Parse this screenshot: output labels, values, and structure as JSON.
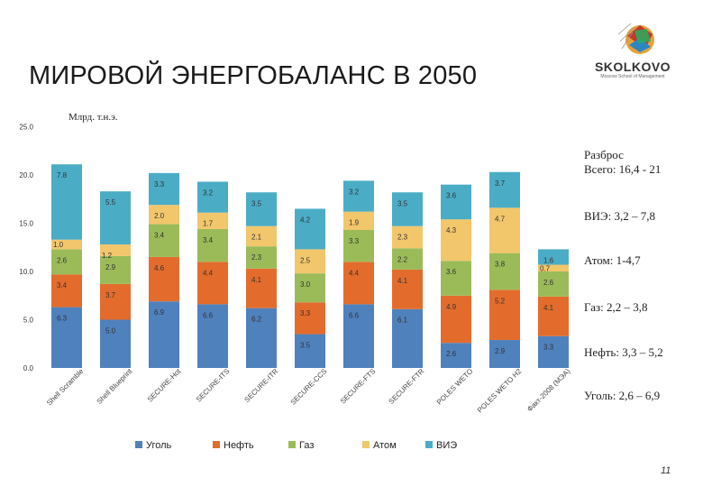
{
  "slide_title": "МИРОВОЙ ЭНЕРГОБАЛАНС В 2050",
  "logo": {
    "name": "SKOLKOVO",
    "tagline": "Moscow School of Management"
  },
  "page_number": "11",
  "colors": {
    "coal": "#4f81bd",
    "oil": "#e36c2c",
    "gas": "#9bbb59",
    "atom": "#f2c66b",
    "res": "#4bacc6"
  },
  "notes": [
    "Разброс",
    "Всего: 16,4 - 21",
    "ВИЭ: 3,2 – 7,8",
    "Атом: 1-4,7",
    "Газ: 2,2 – 3,8",
    "Нефть: 3,3 – 5,2",
    "Уголь: 2,6 – 6,9"
  ],
  "chart_data": {
    "type": "bar",
    "stacked": true,
    "ylabel": "Млрд. т.н.э.",
    "ylim": [
      0,
      25
    ],
    "yticks": [
      "0.0",
      "5.0",
      "10.0",
      "15.0",
      "20.0",
      "25.0"
    ],
    "grid": false,
    "legend_position": "bottom",
    "categories": [
      "Shell Scramble",
      "Shell Blueprint",
      "SECURE-Hot",
      "SECURE-ITS",
      "SECURE-ITR",
      "SECURE-CCS",
      "SECURE-FTS",
      "SECURE-FTR",
      "POLES WETO",
      "POLES WETO H2",
      "Факт-2008 (МЭА)"
    ],
    "series": [
      {
        "name": "Уголь",
        "key": "coal",
        "values": [
          6.3,
          5.0,
          6.9,
          6.6,
          6.2,
          3.5,
          6.6,
          6.1,
          2.6,
          2.9,
          3.3
        ],
        "labels": [
          "6.3",
          "5.0",
          "6.9",
          "6.6",
          "6.2",
          "3.5",
          "6.6",
          "6.1",
          "2.6",
          "2.9",
          "3.3"
        ]
      },
      {
        "name": "Нефть",
        "key": "oil",
        "values": [
          3.4,
          3.7,
          4.6,
          4.4,
          4.1,
          3.3,
          4.4,
          4.1,
          4.9,
          5.2,
          4.1
        ],
        "labels": [
          "3.4",
          "3.7",
          "4.6",
          "4.4",
          "4.1",
          "3.3",
          "4.4",
          "4.1",
          "4.9",
          "5.2",
          "4.1"
        ]
      },
      {
        "name": "Газ",
        "key": "gas",
        "values": [
          2.6,
          2.9,
          3.4,
          3.4,
          2.3,
          3.0,
          3.3,
          2.2,
          3.6,
          3.8,
          2.6
        ],
        "labels": [
          "2.6",
          "2.9",
          "3.4",
          "3.4",
          "2.3",
          "3.0",
          "3.3",
          "2.2",
          "3.6",
          "3.8",
          "2.6"
        ]
      },
      {
        "name": "Атом",
        "key": "atom",
        "values": [
          1.0,
          1.2,
          2.0,
          1.7,
          2.1,
          2.5,
          1.9,
          2.3,
          4.3,
          4.7,
          0.7
        ],
        "labels": [
          "1.0",
          "1.2",
          "2.0",
          "1.7",
          "2.1",
          "2.5",
          "1.9",
          "2.3",
          "4.3",
          "4.7",
          "0.7"
        ]
      },
      {
        "name": "ВИЭ",
        "key": "res",
        "values": [
          7.8,
          5.5,
          3.3,
          3.2,
          3.5,
          4.2,
          3.2,
          3.5,
          3.6,
          3.7,
          1.6
        ],
        "labels": [
          "7.8",
          "5.5",
          "3.3",
          "3.2",
          "3.5",
          "4.2",
          "3.2",
          "3.5",
          "3.6",
          "3.7",
          "1.6"
        ]
      }
    ]
  }
}
